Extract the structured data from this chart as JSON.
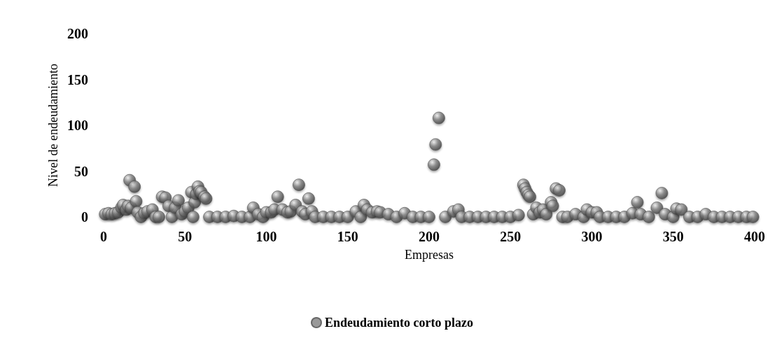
{
  "chart_data": {
    "type": "scatter",
    "xlabel": "Empresas",
    "ylabel": "Nivel de endeudamiento",
    "xlim": [
      0,
      400
    ],
    "xticks": [
      0,
      50,
      100,
      150,
      200,
      250,
      300,
      350,
      400
    ],
    "ylim": [
      0,
      200
    ],
    "yticks": [
      0,
      50,
      100,
      150,
      200
    ],
    "grid": false,
    "legend": "bottom",
    "marker": "circle",
    "series": [
      {
        "name": "Endeudamiento corto plazo",
        "color": "#7f7f7f",
        "x": [
          1,
          3,
          5,
          7,
          9,
          11,
          12,
          14,
          15,
          16,
          17,
          19,
          20,
          21,
          23,
          25,
          27,
          30,
          32,
          34,
          36,
          38,
          40,
          42,
          44,
          46,
          48,
          50,
          52,
          54,
          55,
          56,
          57,
          58,
          59,
          60,
          62,
          63,
          65,
          70,
          75,
          80,
          85,
          90,
          92,
          95,
          98,
          100,
          103,
          105,
          107,
          110,
          113,
          115,
          118,
          120,
          122,
          124,
          126,
          128,
          130,
          135,
          140,
          145,
          150,
          155,
          158,
          160,
          162,
          165,
          168,
          170,
          175,
          180,
          185,
          190,
          195,
          200,
          203,
          204,
          206,
          210,
          215,
          218,
          220,
          225,
          230,
          235,
          240,
          245,
          250,
          255,
          258,
          259,
          260,
          261,
          262,
          264,
          266,
          268,
          270,
          272,
          275,
          276,
          278,
          280,
          282,
          285,
          290,
          295,
          297,
          300,
          303,
          305,
          310,
          315,
          320,
          325,
          328,
          330,
          335,
          340,
          343,
          345,
          350,
          352,
          355,
          360,
          365,
          370,
          375,
          380,
          385,
          390,
          395,
          399
        ],
        "values": [
          3,
          4,
          3,
          4,
          5,
          10,
          13,
          8,
          12,
          40,
          10,
          33,
          17,
          5,
          0,
          4,
          6,
          8,
          0,
          0,
          22,
          21,
          12,
          0,
          10,
          18,
          3,
          6,
          10,
          27,
          0,
          16,
          25,
          33,
          28,
          27,
          22,
          20,
          0,
          0,
          0,
          1,
          0,
          0,
          10,
          3,
          0,
          5,
          5,
          8,
          22,
          8,
          5,
          6,
          13,
          35,
          6,
          3,
          20,
          6,
          0,
          0,
          0,
          0,
          0,
          6,
          0,
          13,
          8,
          5,
          6,
          5,
          3,
          0,
          4,
          0,
          0,
          0,
          57,
          79,
          108,
          0,
          6,
          8,
          0,
          0,
          0,
          0,
          0,
          0,
          0,
          2,
          35,
          31,
          27,
          24,
          22,
          3,
          10,
          5,
          8,
          3,
          16,
          12,
          31,
          29,
          0,
          0,
          3,
          0,
          8,
          5,
          5,
          0,
          0,
          0,
          0,
          4,
          16,
          3,
          0,
          10,
          26,
          3,
          0,
          9,
          8,
          0,
          0,
          3,
          0,
          0,
          0,
          0,
          0,
          0
        ]
      }
    ]
  }
}
